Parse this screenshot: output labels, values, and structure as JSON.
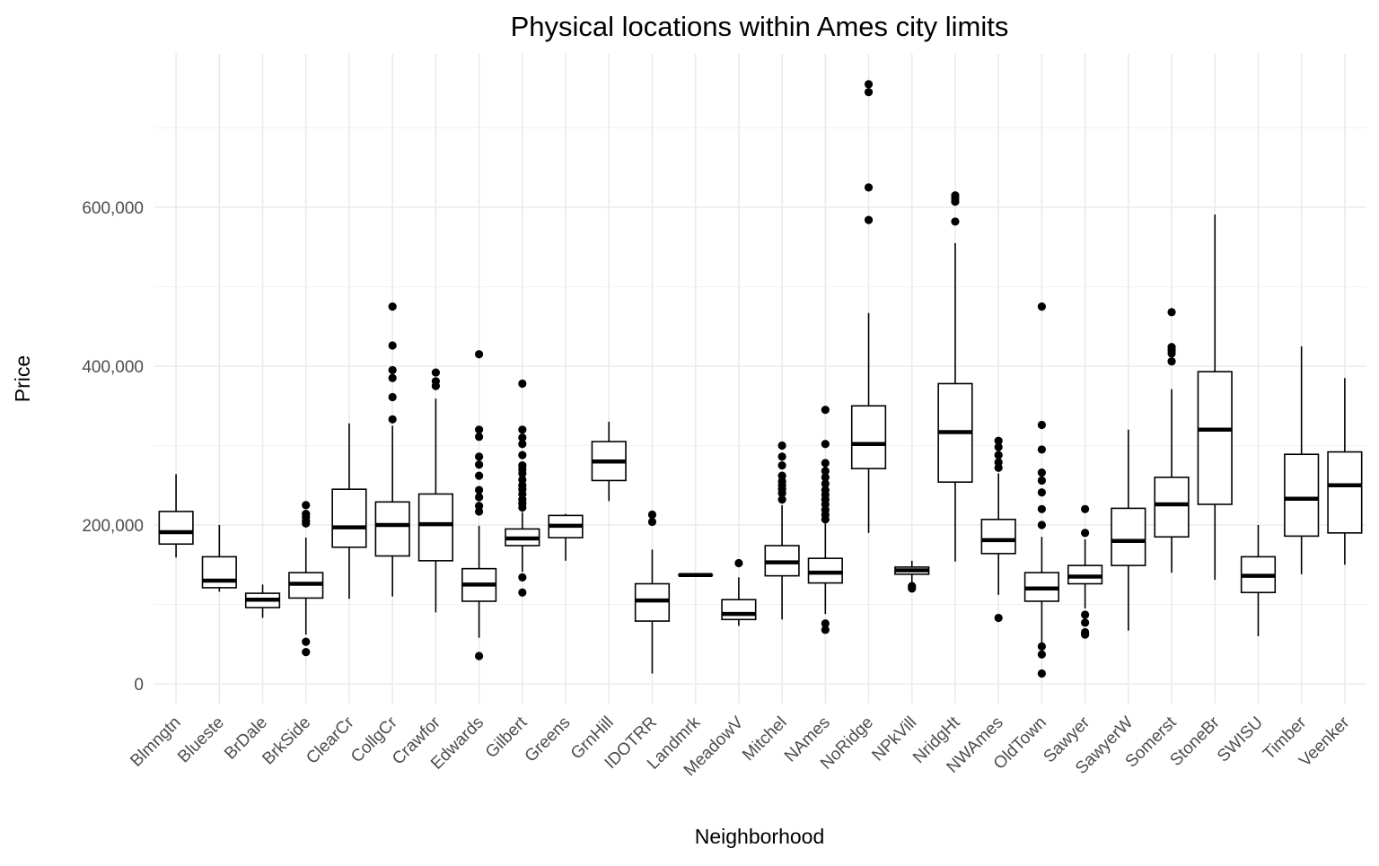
{
  "chart_data": {
    "type": "boxplot",
    "title": "Physical locations within Ames city limits",
    "xlabel": "Neighborhood",
    "ylabel": "Price",
    "ylim": [
      -25000,
      790000
    ],
    "y_ticks": [
      0,
      200000,
      400000,
      600000
    ],
    "y_tick_labels": [
      "0",
      "200,000",
      "400,000",
      "600,000"
    ],
    "grid": true,
    "categories": [
      "Blmngtn",
      "Blueste",
      "BrDale",
      "BrkSide",
      "ClearCr",
      "CollgCr",
      "Crawfor",
      "Edwards",
      "Gilbert",
      "Greens",
      "GrnHill",
      "IDOTRR",
      "Landmrk",
      "MeadowV",
      "Mitchel",
      "NAmes",
      "NoRidge",
      "NPkVill",
      "NridgHt",
      "NWAmes",
      "OldTown",
      "Sawyer",
      "SawyerW",
      "Somerst",
      "StoneBr",
      "SWISU",
      "Timber",
      "Veenker"
    ],
    "boxes": [
      {
        "name": "Blmngtn",
        "whisker_low": 159000,
        "q1": 176000,
        "median": 191000,
        "q3": 217000,
        "whisker_high": 264000,
        "outliers": []
      },
      {
        "name": "Blueste",
        "whisker_low": 116000,
        "q1": 121000,
        "median": 130000,
        "q3": 160000,
        "whisker_high": 200000,
        "outliers": []
      },
      {
        "name": "BrDale",
        "whisker_low": 83000,
        "q1": 96000,
        "median": 106000,
        "q3": 114000,
        "whisker_high": 125000,
        "outliers": []
      },
      {
        "name": "BrkSide",
        "whisker_low": 62000,
        "q1": 108000,
        "median": 126000,
        "q3": 140000,
        "whisker_high": 184000,
        "outliers": [
          40000,
          53000,
          202000,
          205000,
          210000,
          214000,
          225000
        ]
      },
      {
        "name": "ClearCr",
        "whisker_low": 107000,
        "q1": 172000,
        "median": 197000,
        "q3": 245000,
        "whisker_high": 328000,
        "outliers": []
      },
      {
        "name": "CollgCr",
        "whisker_low": 110000,
        "q1": 161000,
        "median": 200000,
        "q3": 229000,
        "whisker_high": 325000,
        "outliers": [
          333000,
          361000,
          385000,
          395000,
          426000,
          475000
        ]
      },
      {
        "name": "Crawfor",
        "whisker_low": 90000,
        "q1": 155000,
        "median": 201000,
        "q3": 239000,
        "whisker_high": 359000,
        "outliers": [
          375000,
          381000,
          392000
        ]
      },
      {
        "name": "Edwards",
        "whisker_low": 58000,
        "q1": 104000,
        "median": 125000,
        "q3": 145000,
        "whisker_high": 199000,
        "outliers": [
          35000,
          217000,
          224000,
          235000,
          244000,
          262000,
          276000,
          286000,
          311000,
          320000,
          415000
        ]
      },
      {
        "name": "Gilbert",
        "whisker_low": 141000,
        "q1": 174000,
        "median": 183000,
        "q3": 195000,
        "whisker_high": 216000,
        "outliers": [
          115000,
          134000,
          222000,
          227000,
          232000,
          239000,
          245000,
          250000,
          257000,
          265000,
          270000,
          275000,
          288000,
          302000,
          310000,
          320000,
          378000
        ]
      },
      {
        "name": "Greens",
        "whisker_low": 155000,
        "q1": 184000,
        "median": 199000,
        "q3": 212000,
        "whisker_high": 214000,
        "outliers": []
      },
      {
        "name": "GrnHill",
        "whisker_low": 230000,
        "q1": 256000,
        "median": 280000,
        "q3": 305000,
        "whisker_high": 330000,
        "outliers": []
      },
      {
        "name": "IDOTRR",
        "whisker_low": 13000,
        "q1": 79000,
        "median": 105000,
        "q3": 126000,
        "whisker_high": 169000,
        "outliers": [
          204000,
          213000
        ]
      },
      {
        "name": "Landmrk",
        "whisker_low": 137000,
        "q1": 137000,
        "median": 137000,
        "q3": 137000,
        "whisker_high": 137000,
        "outliers": []
      },
      {
        "name": "MeadowV",
        "whisker_low": 73000,
        "q1": 81000,
        "median": 88000,
        "q3": 106000,
        "whisker_high": 134000,
        "outliers": [
          152000
        ]
      },
      {
        "name": "Mitchel",
        "whisker_low": 81000,
        "q1": 136000,
        "median": 153000,
        "q3": 174000,
        "whisker_high": 225000,
        "outliers": [
          232000,
          240000,
          245000,
          250000,
          255000,
          262000,
          275000,
          286000,
          300000
        ]
      },
      {
        "name": "NAmes",
        "whisker_low": 88000,
        "q1": 127000,
        "median": 140000,
        "q3": 158000,
        "whisker_high": 202000,
        "outliers": [
          68000,
          76000,
          207000,
          213000,
          219000,
          226000,
          232000,
          238000,
          244000,
          252000,
          260000,
          268000,
          278000,
          302000,
          345000
        ]
      },
      {
        "name": "NoRidge",
        "whisker_low": 190000,
        "q1": 271000,
        "median": 302000,
        "q3": 350000,
        "whisker_high": 467000,
        "outliers": [
          584000,
          625000,
          745000,
          755000
        ]
      },
      {
        "name": "NPkVill",
        "whisker_low": 127000,
        "q1": 138000,
        "median": 143000,
        "q3": 147000,
        "whisker_high": 155000,
        "outliers": [
          120000,
          123000
        ]
      },
      {
        "name": "NridgHt",
        "whisker_low": 154000,
        "q1": 254000,
        "median": 317000,
        "q3": 378000,
        "whisker_high": 555000,
        "outliers": [
          582000,
          607000,
          611000,
          615000
        ]
      },
      {
        "name": "NWAmes",
        "whisker_low": 112000,
        "q1": 164000,
        "median": 181000,
        "q3": 207000,
        "whisker_high": 265000,
        "outliers": [
          83000,
          272000,
          279000,
          288000,
          298000,
          306000
        ]
      },
      {
        "name": "OldTown",
        "whisker_low": 52000,
        "q1": 104000,
        "median": 120000,
        "q3": 140000,
        "whisker_high": 185000,
        "outliers": [
          13000,
          37000,
          47000,
          200000,
          220000,
          241000,
          256000,
          266000,
          295000,
          326000,
          475000
        ]
      },
      {
        "name": "Sawyer",
        "whisker_low": 95000,
        "q1": 126000,
        "median": 135000,
        "q3": 149000,
        "whisker_high": 182000,
        "outliers": [
          62000,
          65000,
          77000,
          87000,
          190000,
          220000
        ]
      },
      {
        "name": "SawyerW",
        "whisker_low": 67000,
        "q1": 149000,
        "median": 180000,
        "q3": 221000,
        "whisker_high": 320000,
        "outliers": []
      },
      {
        "name": "Somerst",
        "whisker_low": 140000,
        "q1": 185000,
        "median": 226000,
        "q3": 260000,
        "whisker_high": 371000,
        "outliers": [
          406000,
          416000,
          420000,
          424000,
          468000
        ]
      },
      {
        "name": "StoneBr",
        "whisker_low": 131000,
        "q1": 226000,
        "median": 320000,
        "q3": 393000,
        "whisker_high": 591000,
        "outliers": []
      },
      {
        "name": "SWISU",
        "whisker_low": 60000,
        "q1": 115000,
        "median": 136000,
        "q3": 160000,
        "whisker_high": 200000,
        "outliers": []
      },
      {
        "name": "Timber",
        "whisker_low": 138000,
        "q1": 186000,
        "median": 233000,
        "q3": 289000,
        "whisker_high": 425000,
        "outliers": []
      },
      {
        "name": "Veenker",
        "whisker_low": 150000,
        "q1": 190000,
        "median": 250000,
        "q3": 292000,
        "whisker_high": 385000,
        "outliers": []
      }
    ]
  }
}
